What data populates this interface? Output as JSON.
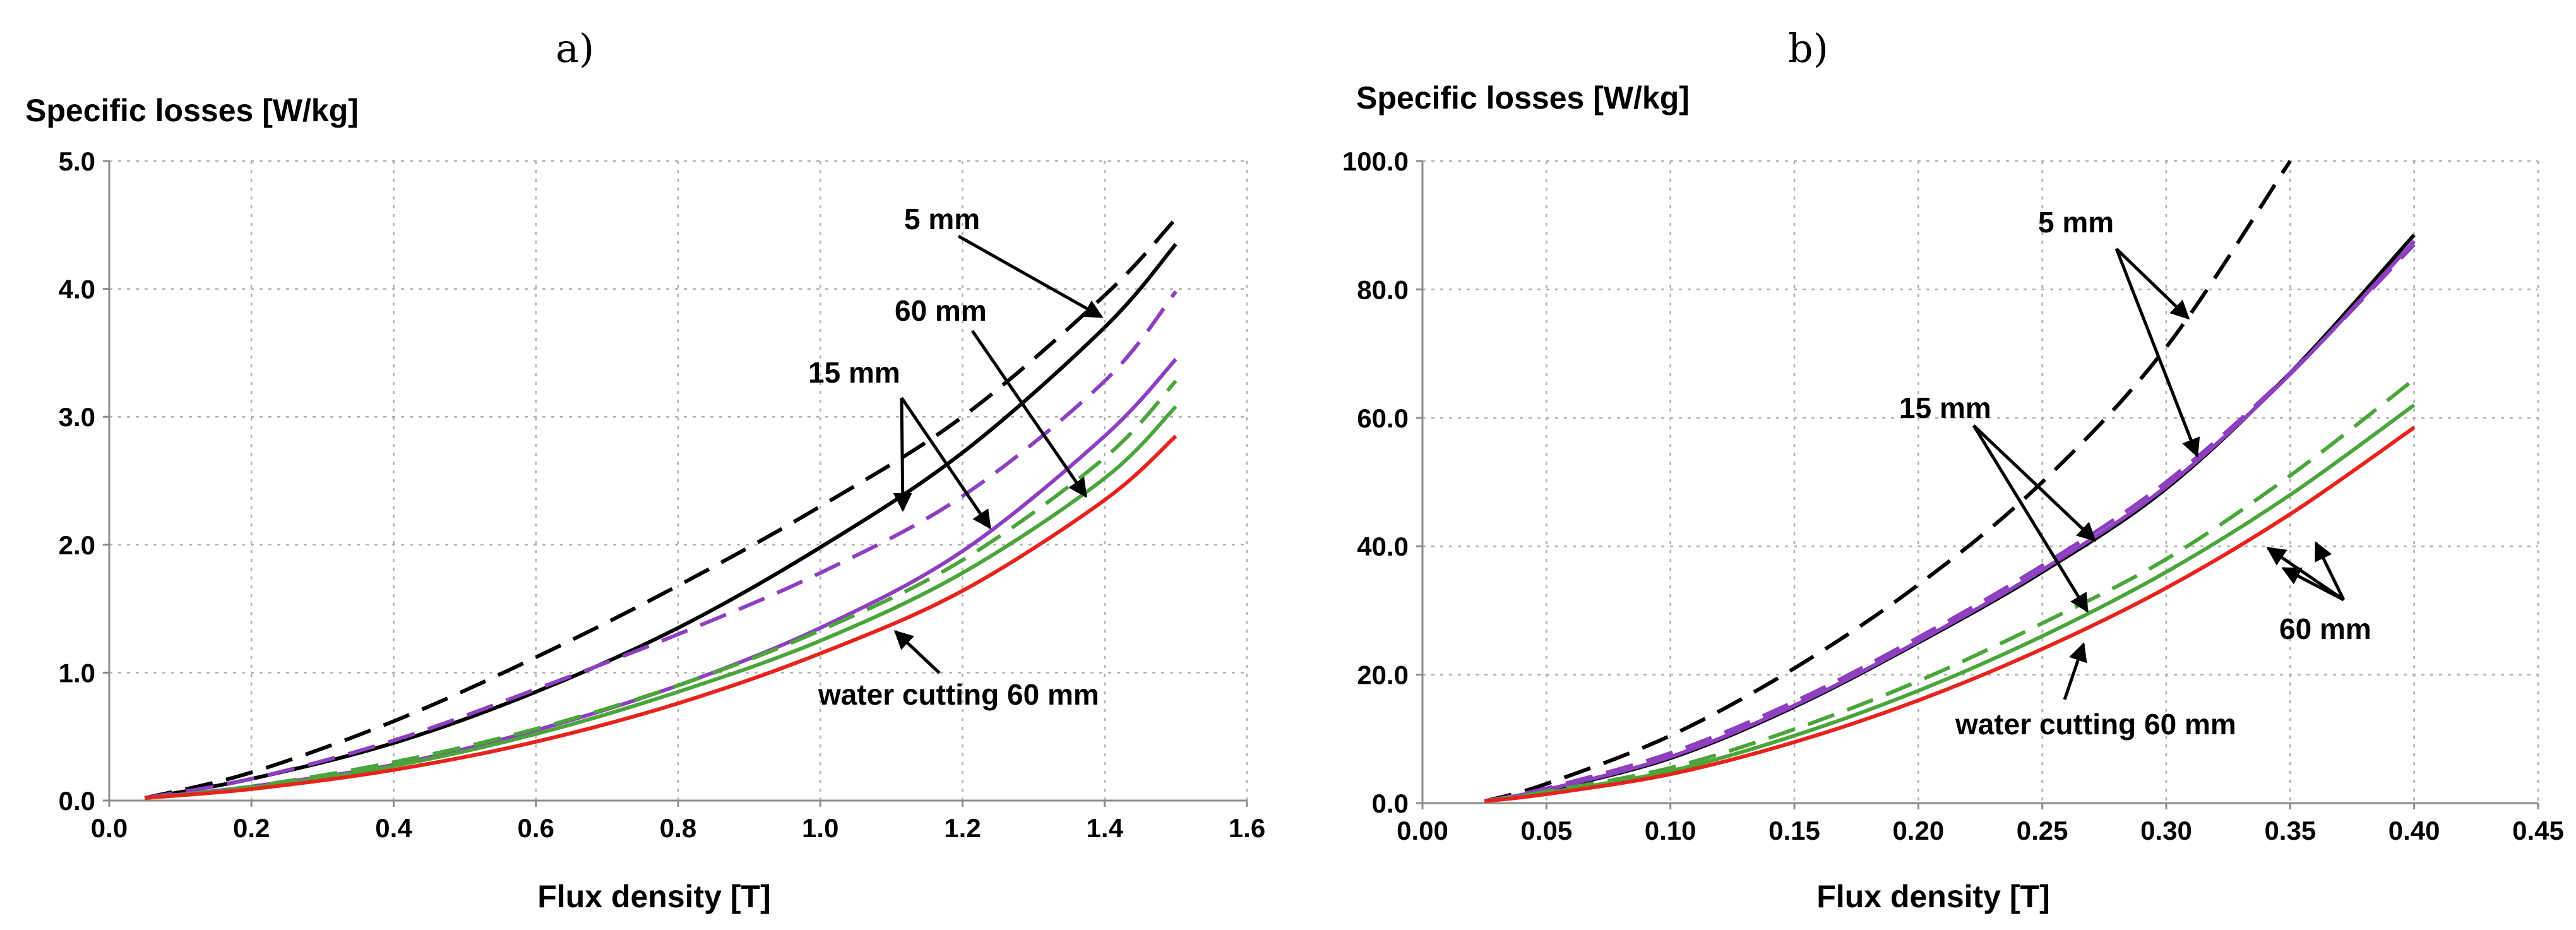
{
  "chart_data": [
    {
      "type": "line",
      "panel_label": "a)",
      "ylabel": "Specific losses [W/kg]",
      "xlabel": "Flux density [T]",
      "xlim": [
        0.0,
        1.6
      ],
      "ylim": [
        0.0,
        5.0
      ],
      "xticks": [
        "0.0",
        "0.2",
        "0.4",
        "0.6",
        "0.8",
        "1.0",
        "1.2",
        "1.4",
        "1.6"
      ],
      "yticks": [
        "0.0",
        "1.0",
        "2.0",
        "3.0",
        "4.0",
        "5.0"
      ],
      "grid": true,
      "series": [
        {
          "name": "5 mm (dashed)",
          "color": "#000000",
          "dashed": true,
          "x": [
            0.05,
            0.2,
            0.4,
            0.6,
            0.8,
            1.0,
            1.2,
            1.4,
            1.5
          ],
          "y": [
            0.02,
            0.22,
            0.62,
            1.12,
            1.68,
            2.3,
            3.0,
            3.95,
            4.55
          ]
        },
        {
          "name": "5 mm",
          "color": "#000000",
          "dashed": false,
          "x": [
            0.05,
            0.2,
            0.4,
            0.6,
            0.8,
            1.0,
            1.2,
            1.4,
            1.5
          ],
          "y": [
            0.02,
            0.17,
            0.45,
            0.85,
            1.35,
            1.98,
            2.72,
            3.7,
            4.35
          ]
        },
        {
          "name": "15 mm (dashed)",
          "color": "#8e3fc0",
          "dashed": true,
          "x": [
            0.05,
            0.2,
            0.4,
            0.6,
            0.8,
            1.0,
            1.2,
            1.4,
            1.5
          ],
          "y": [
            0.02,
            0.17,
            0.47,
            0.87,
            1.3,
            1.78,
            2.38,
            3.28,
            3.98
          ]
        },
        {
          "name": "15 mm",
          "color": "#8e3fc0",
          "dashed": false,
          "x": [
            0.05,
            0.2,
            0.4,
            0.6,
            0.8,
            1.0,
            1.2,
            1.4,
            1.5
          ],
          "y": [
            0.02,
            0.11,
            0.28,
            0.55,
            0.9,
            1.35,
            1.95,
            2.85,
            3.45
          ]
        },
        {
          "name": "60 mm (dashed)",
          "color": "#4aa53a",
          "dashed": true,
          "x": [
            0.05,
            0.2,
            0.4,
            0.6,
            0.8,
            1.0,
            1.2,
            1.4,
            1.5
          ],
          "y": [
            0.02,
            0.11,
            0.3,
            0.56,
            0.9,
            1.33,
            1.88,
            2.68,
            3.28
          ]
        },
        {
          "name": "60 mm",
          "color": "#4aa53a",
          "dashed": false,
          "x": [
            0.05,
            0.2,
            0.4,
            0.6,
            0.8,
            1.0,
            1.2,
            1.4,
            1.5
          ],
          "y": [
            0.02,
            0.1,
            0.27,
            0.52,
            0.85,
            1.25,
            1.78,
            2.52,
            3.08
          ]
        },
        {
          "name": "water cutting 60 mm",
          "color": "#e8231c",
          "dashed": false,
          "x": [
            0.05,
            0.2,
            0.4,
            0.6,
            0.8,
            1.0,
            1.2,
            1.4,
            1.5
          ],
          "y": [
            0.02,
            0.09,
            0.24,
            0.46,
            0.76,
            1.15,
            1.64,
            2.35,
            2.85
          ]
        }
      ],
      "annotations": [
        "5 mm",
        "60 mm",
        "15 mm",
        "water cutting 60 mm"
      ]
    },
    {
      "type": "line",
      "panel_label": "b)",
      "ylabel": "Specific losses [W/kg]",
      "xlabel": "Flux density [T]",
      "xlim": [
        0.0,
        0.45
      ],
      "ylim": [
        0.0,
        100.0
      ],
      "xticks": [
        "0.00",
        "0.05",
        "0.10",
        "0.15",
        "0.20",
        "0.25",
        "0.30",
        "0.35",
        "0.40",
        "0.45"
      ],
      "yticks": [
        "0.0",
        "20.0",
        "40.0",
        "60.0",
        "80.0",
        "100.0"
      ],
      "grid": true,
      "series": [
        {
          "name": "5 mm (dashed)",
          "color": "#000000",
          "dashed": true,
          "x": [
            0.025,
            0.05,
            0.1,
            0.15,
            0.2,
            0.25,
            0.3,
            0.35
          ],
          "y": [
            0.3,
            3.0,
            10.5,
            21.0,
            34.0,
            50.0,
            71.0,
            100.0
          ]
        },
        {
          "name": "5 mm",
          "color": "#000000",
          "dashed": false,
          "x": [
            0.025,
            0.05,
            0.1,
            0.15,
            0.2,
            0.25,
            0.3,
            0.35,
            0.4
          ],
          "y": [
            0.3,
            2.0,
            7.0,
            15.0,
            25.0,
            36.0,
            49.0,
            67.0,
            88.5
          ]
        },
        {
          "name": "15 mm (dashed)",
          "color": "#8e3fc0",
          "dashed": true,
          "x": [
            0.025,
            0.05,
            0.1,
            0.15,
            0.2,
            0.25,
            0.3,
            0.35,
            0.4
          ],
          "y": [
            0.3,
            2.3,
            7.8,
            15.8,
            25.8,
            37.0,
            50.0,
            67.0,
            87.0
          ]
        },
        {
          "name": "15 mm",
          "color": "#8e3fc0",
          "dashed": false,
          "x": [
            0.025,
            0.05,
            0.1,
            0.15,
            0.2,
            0.25,
            0.3,
            0.35,
            0.4
          ],
          "y": [
            0.3,
            2.1,
            7.2,
            15.2,
            25.2,
            36.3,
            49.3,
            66.8,
            87.5
          ]
        },
        {
          "name": "60 mm (dashed)",
          "color": "#4aa53a",
          "dashed": true,
          "x": [
            0.025,
            0.05,
            0.1,
            0.15,
            0.2,
            0.25,
            0.3,
            0.35,
            0.4
          ],
          "y": [
            0.3,
            1.8,
            5.5,
            11.5,
            19.0,
            28.0,
            38.0,
            51.0,
            66.0
          ]
        },
        {
          "name": "60 mm",
          "color": "#4aa53a",
          "dashed": false,
          "x": [
            0.025,
            0.05,
            0.1,
            0.15,
            0.2,
            0.25,
            0.3,
            0.35,
            0.4
          ],
          "y": [
            0.3,
            1.6,
            5.0,
            10.5,
            17.5,
            26.0,
            36.0,
            48.0,
            62.0
          ]
        },
        {
          "name": "water cutting 60 mm",
          "color": "#e8231c",
          "dashed": false,
          "x": [
            0.025,
            0.05,
            0.1,
            0.15,
            0.2,
            0.25,
            0.3,
            0.35,
            0.4
          ],
          "y": [
            0.3,
            1.4,
            4.5,
            9.5,
            16.0,
            24.0,
            33.5,
            45.0,
            58.5
          ]
        }
      ],
      "annotations": [
        "5 mm",
        "15 mm",
        "60 mm",
        "water cutting 60 mm"
      ]
    }
  ]
}
